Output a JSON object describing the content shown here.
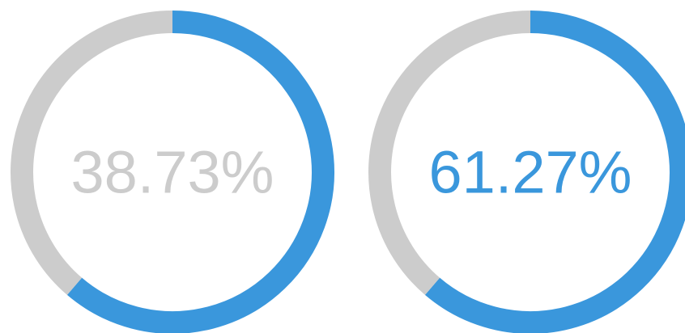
{
  "chart_data": [
    {
      "type": "donut",
      "values": [
        61.27,
        38.73
      ],
      "value_labels": [
        null,
        "38.73%"
      ],
      "colors": [
        "#3a97dc",
        "#cccccc"
      ]
    },
    {
      "type": "donut",
      "values": [
        61.27,
        38.73
      ],
      "value_labels": [
        "61.27%",
        null
      ],
      "colors": [
        "#3a97dc",
        "#cccccc"
      ]
    }
  ]
}
